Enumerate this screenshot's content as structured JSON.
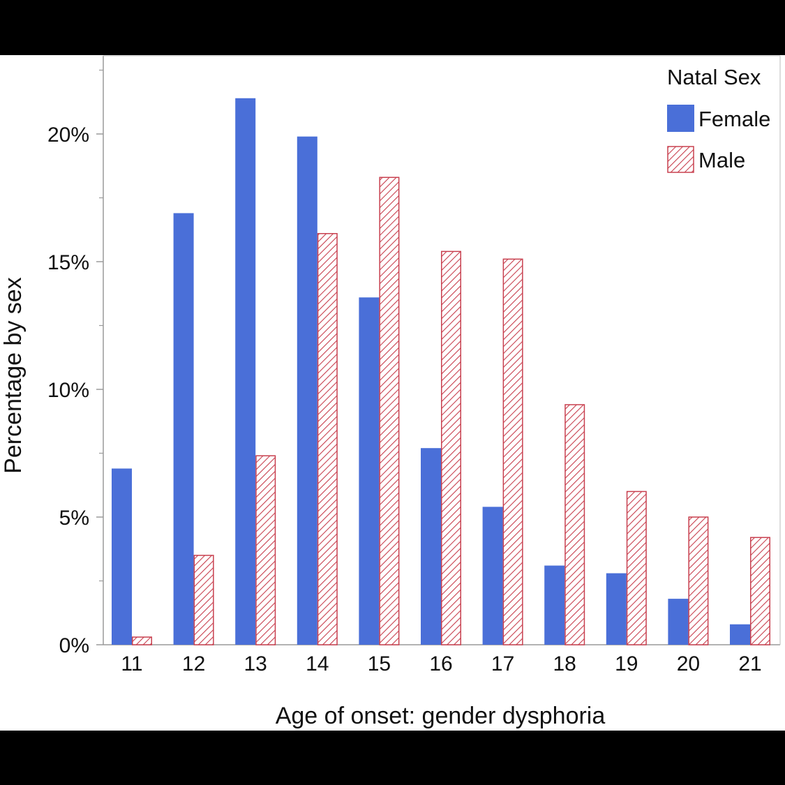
{
  "chart_data": {
    "type": "bar",
    "title": "",
    "xlabel": "Age of onset: gender dysphoria",
    "ylabel": "Percentage by sex",
    "categories": [
      "11",
      "12",
      "13",
      "14",
      "15",
      "16",
      "17",
      "18",
      "19",
      "20",
      "21"
    ],
    "series": [
      {
        "name": "Female",
        "values": [
          6.9,
          16.9,
          21.4,
          19.9,
          13.6,
          7.7,
          5.4,
          3.1,
          2.8,
          1.8,
          0.8
        ],
        "color": "#4a6fd8",
        "pattern": "solid"
      },
      {
        "name": "Male",
        "values": [
          0.3,
          3.5,
          7.4,
          16.1,
          18.3,
          15.4,
          15.1,
          9.4,
          6.0,
          5.0,
          4.2
        ],
        "color": "#c8404f",
        "pattern": "diagonal-hatch"
      }
    ],
    "ylim": [
      0,
      23
    ],
    "yticks": [
      0,
      5,
      10,
      15,
      20
    ],
    "ytick_labels": [
      "0%",
      "5%",
      "10%",
      "15%",
      "20%"
    ],
    "minor_yticks": [
      2.5,
      7.5,
      12.5,
      17.5,
      22.5
    ],
    "grid": false,
    "legend": {
      "title": "Natal Sex",
      "placement": "top-right",
      "entries": [
        "Female",
        "Male"
      ]
    }
  }
}
